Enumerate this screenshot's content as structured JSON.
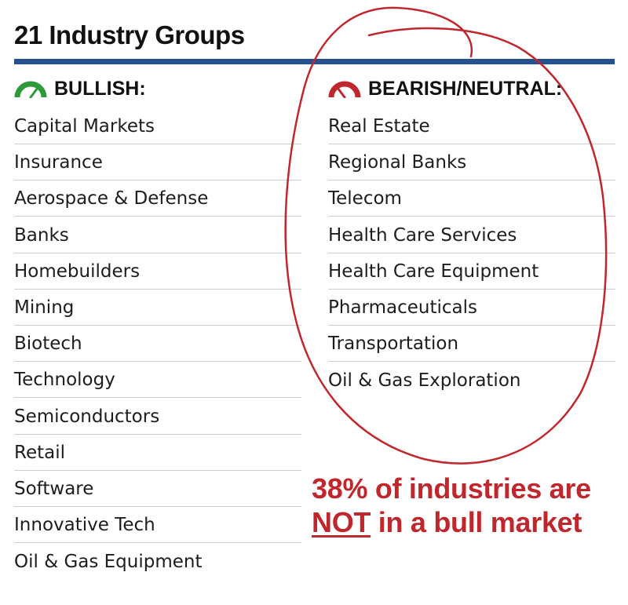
{
  "title": "21 Industry Groups",
  "colors": {
    "rule": "#27508f",
    "bullish": "#2e9a3a",
    "bearish": "#c0272d",
    "annotation": "#c0272d"
  },
  "bullish": {
    "header": "BULLISH:",
    "icon": "bullish-gauge-icon",
    "items": [
      "Capital Markets",
      "Insurance",
      "Aerospace & Defense",
      "Banks",
      "Homebuilders",
      "Mining",
      "Biotech",
      "Technology",
      "Semiconductors",
      "Retail",
      "Software",
      "Innovative Tech",
      "Oil & Gas Equipment"
    ]
  },
  "bearish": {
    "header": "BEARISH/NEUTRAL:",
    "icon": "bearish-gauge-icon",
    "items": [
      "Real Estate",
      "Regional Banks",
      "Telecom",
      "Health Care Services",
      "Health Care Equipment",
      "Pharmaceuticals",
      "Transportation",
      "Oil & Gas Exploration"
    ]
  },
  "callout": {
    "line1": "38% of industries are",
    "emphasis": "NOT",
    "line2_rest": " in a bull market"
  }
}
